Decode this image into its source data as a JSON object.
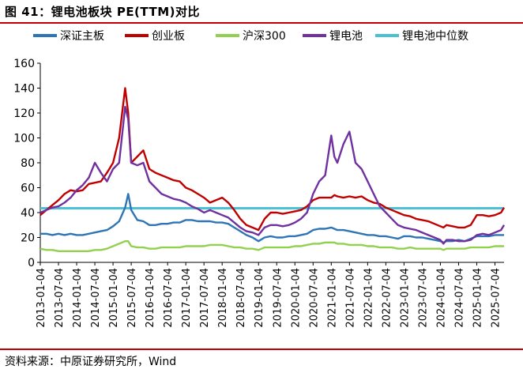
{
  "header": {
    "title": "图 41：锂电池板块 PE(TTM)对比"
  },
  "footer": {
    "source": "资料来源：中原证券研究所，Wind"
  },
  "chart_data": {
    "type": "line",
    "title": "",
    "xlabel": "",
    "ylabel": "",
    "ylim": [
      0,
      160
    ],
    "yticks": [
      0,
      20,
      40,
      60,
      80,
      100,
      120,
      140,
      160
    ],
    "grid": false,
    "legend_position": "top",
    "x_tick_labels": [
      "2013-01-04",
      "2013-07-04",
      "2014-01-04",
      "2014-07-04",
      "2015-01-04",
      "2015-07-04",
      "2016-01-04",
      "2016-07-04",
      "2017-01-04",
      "2017-07-04",
      "2018-01-04",
      "2018-07-04",
      "2019-01-04",
      "2019-07-04",
      "2020-01-04",
      "2020-07-04",
      "2021-01-04",
      "2021-07-04",
      "2022-01-04",
      "2022-07-04",
      "2023-01-04",
      "2023-07-04",
      "2024-01-04",
      "2024-07-04",
      "2025-01-04",
      "2025-07-04"
    ],
    "x": [
      "2013-01",
      "2013-03",
      "2013-05",
      "2013-07",
      "2013-09",
      "2013-11",
      "2014-01",
      "2014-03",
      "2014-05",
      "2014-07",
      "2014-09",
      "2014-11",
      "2015-01",
      "2015-03",
      "2015-05",
      "2015-06",
      "2015-07",
      "2015-09",
      "2015-11",
      "2016-01",
      "2016-03",
      "2016-05",
      "2016-07",
      "2016-09",
      "2016-11",
      "2017-01",
      "2017-03",
      "2017-05",
      "2017-07",
      "2017-09",
      "2017-11",
      "2018-01",
      "2018-03",
      "2018-05",
      "2018-07",
      "2018-09",
      "2018-11",
      "2019-01",
      "2019-03",
      "2019-05",
      "2019-07",
      "2019-09",
      "2019-11",
      "2020-01",
      "2020-03",
      "2020-05",
      "2020-07",
      "2020-09",
      "2020-11",
      "2021-01",
      "2021-02",
      "2021-03",
      "2021-05",
      "2021-07",
      "2021-09",
      "2021-11",
      "2022-01",
      "2022-03",
      "2022-05",
      "2022-07",
      "2022-09",
      "2022-11",
      "2023-01",
      "2023-03",
      "2023-05",
      "2023-07",
      "2023-09",
      "2023-11",
      "2024-01",
      "2024-02",
      "2024-03",
      "2024-05",
      "2024-07",
      "2024-09",
      "2024-11",
      "2025-01",
      "2025-03",
      "2025-05",
      "2025-07",
      "2025-09",
      "2025-10"
    ],
    "series": [
      {
        "name": "深证主板",
        "color": "#2e75b6",
        "values": [
          23,
          23,
          22,
          23,
          22,
          23,
          22,
          22,
          23,
          24,
          25,
          26,
          29,
          33,
          44,
          55,
          42,
          34,
          33,
          30,
          30,
          31,
          31,
          32,
          32,
          34,
          34,
          33,
          33,
          33,
          32,
          32,
          31,
          28,
          25,
          22,
          20,
          17,
          20,
          21,
          20,
          20,
          21,
          21,
          22,
          23,
          26,
          27,
          27,
          28,
          27,
          26,
          26,
          25,
          24,
          23,
          22,
          22,
          21,
          21,
          20,
          19,
          21,
          21,
          20,
          20,
          19,
          18,
          17,
          16,
          17,
          17,
          18,
          17,
          19,
          21,
          21,
          21,
          22,
          22,
          22
        ]
      },
      {
        "name": "创业板",
        "color": "#c00000",
        "values": [
          38,
          42,
          46,
          50,
          55,
          58,
          57,
          58,
          63,
          64,
          65,
          72,
          80,
          100,
          140,
          120,
          80,
          85,
          90,
          75,
          72,
          70,
          68,
          66,
          65,
          60,
          58,
          55,
          52,
          48,
          50,
          52,
          48,
          42,
          35,
          30,
          28,
          26,
          35,
          40,
          40,
          39,
          40,
          41,
          42,
          45,
          50,
          52,
          52,
          52,
          54,
          53,
          52,
          53,
          52,
          53,
          50,
          48,
          47,
          44,
          42,
          40,
          38,
          37,
          35,
          34,
          33,
          31,
          29,
          28,
          30,
          29,
          28,
          28,
          30,
          38,
          38,
          37,
          38,
          40,
          44
        ]
      },
      {
        "name": "沪深300",
        "color": "#92d050",
        "values": [
          11,
          10,
          10,
          9,
          9,
          9,
          9,
          9,
          9,
          10,
          10,
          11,
          13,
          15,
          17,
          17,
          13,
          12,
          12,
          11,
          11,
          12,
          12,
          12,
          12,
          13,
          13,
          13,
          13,
          14,
          14,
          14,
          13,
          12,
          12,
          11,
          11,
          10,
          12,
          12,
          12,
          12,
          12,
          13,
          13,
          14,
          15,
          15,
          16,
          16,
          16,
          15,
          15,
          14,
          14,
          14,
          13,
          13,
          12,
          12,
          12,
          11,
          11,
          12,
          11,
          11,
          11,
          11,
          11,
          10,
          11,
          11,
          11,
          11,
          12,
          12,
          12,
          12,
          13,
          13,
          13
        ]
      },
      {
        "name": "锂电池",
        "color": "#7030a0",
        "values": [
          40,
          42,
          44,
          45,
          48,
          52,
          58,
          62,
          68,
          80,
          72,
          65,
          75,
          80,
          125,
          115,
          80,
          78,
          80,
          65,
          60,
          55,
          53,
          51,
          50,
          48,
          45,
          43,
          40,
          42,
          40,
          38,
          36,
          32,
          28,
          25,
          24,
          22,
          28,
          30,
          30,
          29,
          30,
          32,
          35,
          40,
          55,
          65,
          70,
          102,
          85,
          80,
          95,
          105,
          80,
          75,
          65,
          55,
          45,
          40,
          35,
          30,
          28,
          27,
          26,
          24,
          22,
          20,
          18,
          15,
          18,
          18,
          17,
          17,
          18,
          22,
          23,
          22,
          24,
          26,
          30
        ]
      },
      {
        "name": "锂电池中位数",
        "color": "#4bc1d6",
        "values": [
          43.5,
          43.5,
          43.5,
          43.5,
          43.5,
          43.5,
          43.5,
          43.5,
          43.5,
          43.5,
          43.5,
          43.5,
          43.5,
          43.5,
          43.5,
          43.5,
          43.5,
          43.5,
          43.5,
          43.5,
          43.5,
          43.5,
          43.5,
          43.5,
          43.5,
          43.5,
          43.5,
          43.5,
          43.5,
          43.5,
          43.5,
          43.5,
          43.5,
          43.5,
          43.5,
          43.5,
          43.5,
          43.5,
          43.5,
          43.5,
          43.5,
          43.5,
          43.5,
          43.5,
          43.5,
          43.5,
          43.5,
          43.5,
          43.5,
          43.5,
          43.5,
          43.5,
          43.5,
          43.5,
          43.5,
          43.5,
          43.5,
          43.5,
          43.5,
          43.5,
          43.5,
          43.5,
          43.5,
          43.5,
          43.5,
          43.5,
          43.5,
          43.5,
          43.5,
          43.5,
          43.5,
          43.5,
          43.5,
          43.5,
          43.5,
          43.5,
          43.5,
          43.5,
          43.5,
          43.5,
          43.5
        ]
      }
    ]
  }
}
